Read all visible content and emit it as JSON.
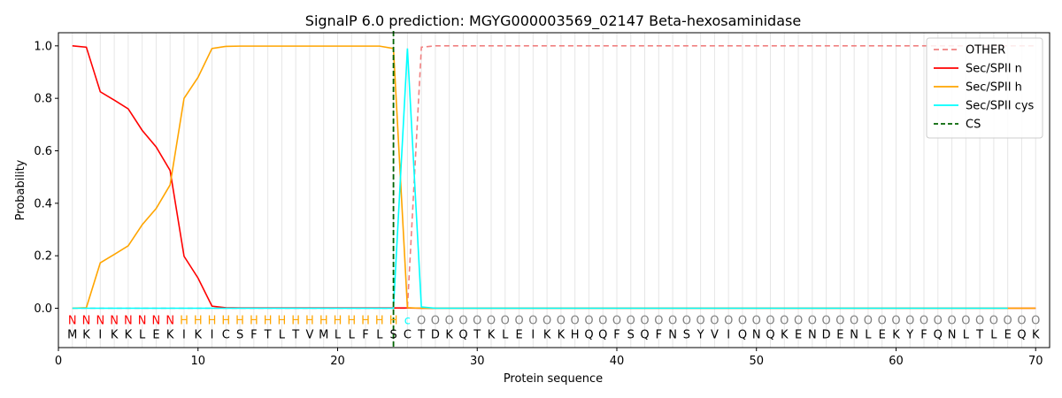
{
  "chart_data": {
    "type": "line",
    "title": "SignalP 6.0 prediction: MGYG000003569_02147 Beta-hexosaminidase",
    "xlabel": "Protein sequence",
    "ylabel": "Probability",
    "xlim": [
      0,
      71
    ],
    "ylim": [
      -0.15,
      1.05
    ],
    "x_ticks": [
      "0",
      "10",
      "20",
      "30",
      "40",
      "50",
      "60",
      "70"
    ],
    "y_ticks": [
      "0.0",
      "0.2",
      "0.4",
      "0.6",
      "0.8",
      "1.0"
    ],
    "grid": "vertical lines at each residue",
    "legend_position": "top-right",
    "sequence": [
      "M",
      "K",
      "I",
      "K",
      "K",
      "L",
      "E",
      "K",
      "I",
      "K",
      "I",
      "C",
      "S",
      "F",
      "T",
      "L",
      "T",
      "V",
      "M",
      "L",
      "L",
      "F",
      "L",
      "S",
      "C",
      "T",
      "D",
      "K",
      "Q",
      "T",
      "K",
      "L",
      "E",
      "I",
      "K",
      "K",
      "H",
      "Q",
      "Q",
      "F",
      "S",
      "Q",
      "F",
      "N",
      "S",
      "Y",
      "V",
      "I",
      "Q",
      "N",
      "Q",
      "K",
      "E",
      "N",
      "D",
      "E",
      "N",
      "L",
      "E",
      "K",
      "Y",
      "F",
      "Q",
      "N",
      "L",
      "T",
      "L",
      "E",
      "Q",
      "K"
    ],
    "region_labels": [
      "N",
      "N",
      "N",
      "N",
      "N",
      "N",
      "N",
      "N",
      "H",
      "H",
      "H",
      "H",
      "H",
      "H",
      "H",
      "H",
      "H",
      "H",
      "H",
      "H",
      "H",
      "H",
      "H",
      "H",
      "c",
      "O",
      "O",
      "O",
      "O",
      "O",
      "O",
      "O",
      "O",
      "O",
      "O",
      "O",
      "O",
      "O",
      "O",
      "O",
      "O",
      "O",
      "O",
      "O",
      "O",
      "O",
      "O",
      "O",
      "O",
      "O",
      "O",
      "O",
      "O",
      "O",
      "O",
      "O",
      "O",
      "O",
      "O",
      "O",
      "O",
      "O",
      "O",
      "O",
      "O",
      "O",
      "O",
      "O",
      "O",
      "O"
    ],
    "region_colors": {
      "N": "#ff0000",
      "H": "#ffa500",
      "c": "#00ffff",
      "O": "#808080"
    },
    "series": [
      {
        "name": "OTHER",
        "color": "#f08080",
        "dash": true,
        "values": [
          0,
          0,
          0,
          0,
          0,
          0,
          0,
          0,
          0,
          0,
          0,
          0,
          0,
          0,
          0,
          0,
          0,
          0,
          0,
          0,
          0,
          0,
          0,
          0,
          0,
          0.995,
          1,
          1,
          1,
          1,
          1,
          1,
          1,
          1,
          1,
          1,
          1,
          1,
          1,
          1,
          1,
          1,
          1,
          1,
          1,
          1,
          1,
          1,
          1,
          1,
          1,
          1,
          1,
          1,
          1,
          1,
          1,
          1,
          1,
          1,
          1,
          1,
          1,
          1,
          1,
          1,
          1,
          1,
          1,
          1
        ]
      },
      {
        "name": "Sec/SPII n",
        "color": "#ff0000",
        "dash": false,
        "values": [
          1.0,
          0.995,
          0.825,
          0.793,
          0.76,
          0.678,
          0.615,
          0.525,
          0.198,
          0.115,
          0.008,
          0.002,
          0.001,
          0.001,
          0.001,
          0.001,
          0.001,
          0.001,
          0.001,
          0.001,
          0.001,
          0.001,
          0.001,
          0.001,
          0.001,
          0,
          0,
          0,
          0,
          0,
          0,
          0,
          0,
          0,
          0,
          0,
          0,
          0,
          0,
          0,
          0,
          0,
          0,
          0,
          0,
          0,
          0,
          0,
          0,
          0,
          0,
          0,
          0,
          0,
          0,
          0,
          0,
          0,
          0,
          0,
          0,
          0,
          0,
          0,
          0,
          0,
          0,
          0,
          0,
          0
        ]
      },
      {
        "name": "Sec/SPII h",
        "color": "#ffa500",
        "dash": false,
        "values": [
          0,
          0.002,
          0.173,
          0.205,
          0.238,
          0.318,
          0.38,
          0.47,
          0.8,
          0.88,
          0.99,
          0.998,
          0.999,
          0.999,
          0.999,
          0.999,
          0.999,
          0.999,
          0.999,
          0.999,
          0.999,
          0.999,
          0.999,
          0.99,
          0.002,
          0,
          0,
          0,
          0,
          0,
          0,
          0,
          0,
          0,
          0,
          0,
          0,
          0,
          0,
          0,
          0,
          0,
          0,
          0,
          0,
          0,
          0,
          0,
          0,
          0,
          0,
          0,
          0,
          0,
          0,
          0,
          0,
          0,
          0,
          0,
          0,
          0,
          0,
          0,
          0,
          0,
          0,
          0,
          0,
          0
        ]
      },
      {
        "name": "Sec/SPII cys",
        "color": "#00ffff",
        "dash": false,
        "values": [
          0,
          0,
          0,
          0,
          0,
          0,
          0,
          0,
          0,
          0,
          0,
          0,
          0,
          0,
          0,
          0,
          0,
          0,
          0,
          0,
          0,
          0,
          0,
          0,
          0.99,
          0.005,
          0,
          0,
          0,
          0,
          0,
          0,
          0,
          0,
          0,
          0,
          0,
          0,
          0,
          0,
          0,
          0,
          0,
          0,
          0,
          0,
          0,
          0,
          0,
          0,
          0,
          0,
          0,
          0,
          0,
          0,
          0,
          0,
          0,
          0,
          0,
          0,
          0,
          0,
          0,
          0,
          0,
          0
        ]
      }
    ],
    "cs_marker": {
      "name": "CS",
      "color": "#006400",
      "x": 24
    }
  }
}
